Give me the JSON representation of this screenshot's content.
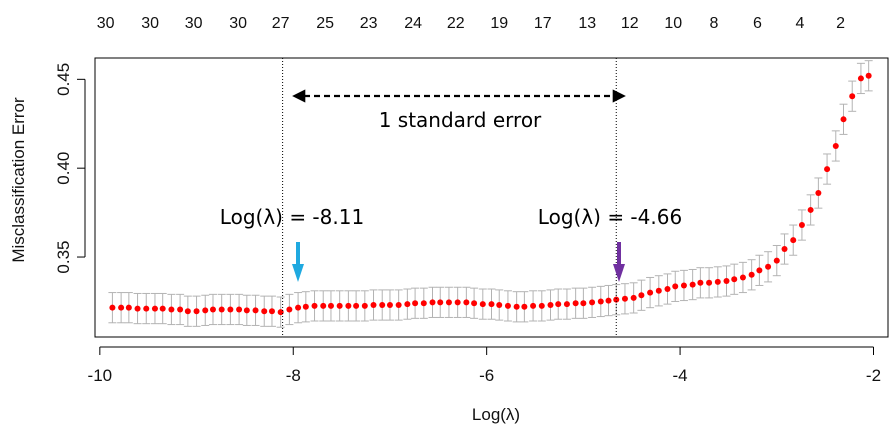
{
  "chart_data": {
    "type": "scatter",
    "title": "",
    "xlabel": "Log(λ)",
    "ylabel": "Misclassification Error",
    "xlim": [
      -10.05,
      -1.85
    ],
    "ylim": [
      0.305,
      0.462
    ],
    "x_ticks": [
      -10,
      -8,
      -6,
      -4,
      -2
    ],
    "x_tick_labels": [
      "-10",
      "-8",
      "-6",
      "-4",
      "-2"
    ],
    "y_ticks": [
      0.35,
      0.4,
      0.45
    ],
    "y_tick_labels": [
      "0.35",
      "0.40",
      "0.45"
    ],
    "top_axis_labels": [
      "30",
      "30",
      "30",
      "30",
      "27",
      "25",
      "23",
      "24",
      "22",
      "19",
      "17",
      "13",
      "12",
      "10",
      "8",
      "6",
      "4",
      "2"
    ],
    "top_axis_positions": [
      -9.94,
      -9.48,
      -9.03,
      -8.57,
      -8.13,
      -7.67,
      -7.22,
      -6.76,
      -6.32,
      -5.87,
      -5.42,
      -4.96,
      -4.52,
      -4.07,
      -3.65,
      -3.2,
      -2.76,
      -2.34
    ],
    "point_color": "#ff0000",
    "errorbar_color": "#b3b3b3",
    "series": [
      {
        "x": [
          -9.87,
          -9.78,
          -9.7,
          -9.61,
          -9.52,
          -9.43,
          -9.35,
          -9.26,
          -9.17,
          -9.09,
          -9.0,
          -8.91,
          -8.83,
          -8.74,
          -8.65,
          -8.56,
          -8.48,
          -8.39,
          -8.3,
          -8.22,
          -8.13,
          -8.04,
          -7.95,
          -7.87,
          -7.78,
          -7.69,
          -7.61,
          -7.52,
          -7.43,
          -7.35,
          -7.26,
          -7.17,
          -7.08,
          -7.0,
          -6.91,
          -6.82,
          -6.74,
          -6.65,
          -6.56,
          -6.48,
          -6.39,
          -6.3,
          -6.21,
          -6.13,
          -6.04,
          -5.95,
          -5.87,
          -5.78,
          -5.69,
          -5.61,
          -5.52,
          -5.43,
          -5.34,
          -5.26,
          -5.17,
          -5.08,
          -5.0,
          -4.91,
          -4.82,
          -4.74,
          -4.66,
          -4.57,
          -4.48,
          -4.4,
          -4.31,
          -4.22,
          -4.13,
          -4.05,
          -3.96,
          -3.87,
          -3.79,
          -3.7,
          -3.61,
          -3.52,
          -3.44,
          -3.35,
          -3.26,
          -3.18,
          -3.09,
          -3.0,
          -2.92,
          -2.83,
          -2.74,
          -2.65,
          -2.57,
          -2.48,
          -2.39,
          -2.31,
          -2.22,
          -2.13,
          -2.05
        ],
        "y": [
          0.3215,
          0.3215,
          0.3215,
          0.321,
          0.321,
          0.321,
          0.321,
          0.3205,
          0.3205,
          0.3195,
          0.3195,
          0.32,
          0.3205,
          0.3205,
          0.3205,
          0.3205,
          0.32,
          0.32,
          0.3195,
          0.3195,
          0.319,
          0.3205,
          0.3215,
          0.322,
          0.3225,
          0.3225,
          0.3225,
          0.3225,
          0.3225,
          0.3225,
          0.3225,
          0.323,
          0.323,
          0.323,
          0.323,
          0.3235,
          0.324,
          0.324,
          0.3245,
          0.3245,
          0.3245,
          0.3245,
          0.3245,
          0.324,
          0.3235,
          0.3235,
          0.323,
          0.3225,
          0.322,
          0.322,
          0.3225,
          0.3225,
          0.323,
          0.3235,
          0.3235,
          0.324,
          0.324,
          0.3245,
          0.325,
          0.3255,
          0.326,
          0.3265,
          0.327,
          0.3285,
          0.33,
          0.331,
          0.332,
          0.3335,
          0.334,
          0.3345,
          0.3355,
          0.3355,
          0.336,
          0.3365,
          0.3375,
          0.3385,
          0.34,
          0.3425,
          0.3445,
          0.348,
          0.3545,
          0.3595,
          0.368,
          0.3765,
          0.386,
          0.3995,
          0.4125,
          0.4275,
          0.4405,
          0.4505,
          0.452
        ],
        "err": [
          0.0085,
          0.0085,
          0.0085,
          0.0085,
          0.0085,
          0.0085,
          0.0085,
          0.0085,
          0.0085,
          0.0085,
          0.0085,
          0.0085,
          0.0085,
          0.0085,
          0.0085,
          0.0085,
          0.0085,
          0.0085,
          0.0085,
          0.0085,
          0.0085,
          0.0085,
          0.0085,
          0.0085,
          0.0085,
          0.0085,
          0.0085,
          0.0085,
          0.0085,
          0.0085,
          0.0085,
          0.0085,
          0.0085,
          0.0085,
          0.0085,
          0.0085,
          0.0085,
          0.0085,
          0.0085,
          0.0085,
          0.0085,
          0.0085,
          0.0085,
          0.0085,
          0.0085,
          0.0085,
          0.0085,
          0.0085,
          0.0085,
          0.0085,
          0.0085,
          0.0085,
          0.0085,
          0.0085,
          0.0085,
          0.0085,
          0.0085,
          0.0085,
          0.0085,
          0.0085,
          0.0085,
          0.0085,
          0.0085,
          0.0085,
          0.0085,
          0.0085,
          0.0085,
          0.0085,
          0.0085,
          0.0085,
          0.0085,
          0.0085,
          0.0085,
          0.0085,
          0.0085,
          0.0085,
          0.0085,
          0.0085,
          0.0085,
          0.0085,
          0.0085,
          0.0085,
          0.0085,
          0.0085,
          0.0085,
          0.0085,
          0.0085,
          0.0085,
          0.0085,
          0.0085,
          0.0085
        ]
      }
    ],
    "vlines": [
      -8.11,
      -4.66
    ],
    "annotations": {
      "range_label": "1 standard error",
      "left_label": "Log(λ) = -8.11",
      "right_label": "Log(λ) = -4.66",
      "left_arrow_color": "#1fa9e0",
      "right_arrow_color": "#7030a0"
    }
  }
}
